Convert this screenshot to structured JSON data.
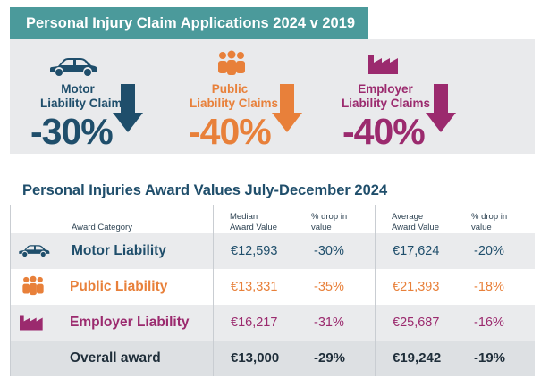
{
  "colors": {
    "teal": "#4b9a9b",
    "navy": "#1f4e6b",
    "orange": "#e8803a",
    "purple": "#9b2a6e",
    "panel_gray": "#e9eaec",
    "dark_text": "#1f2e3a"
  },
  "header": {
    "title": "Personal Injury Claim Applications 2024 v 2019"
  },
  "claims": [
    {
      "icon": "car-icon",
      "label_line1": "Motor",
      "label_line2": "Liability Claims",
      "value": "-30%",
      "trend": "down",
      "color": "#1f4e6b"
    },
    {
      "icon": "people-icon",
      "label_line1": "Public",
      "label_line2": "Liability Claims",
      "value": "-40%",
      "trend": "down",
      "color": "#e8803a"
    },
    {
      "icon": "factory-icon",
      "label_line1": "Employer",
      "label_line2": "Liability Claims",
      "value": "-40%",
      "trend": "down",
      "color": "#9b2a6e"
    }
  ],
  "awards": {
    "title": "Personal Injuries Award Values July-December 2024",
    "columns": {
      "category": "Award Category",
      "median_line1": "Median",
      "median_line2": "Award Value",
      "median_drop_line1": "% drop in",
      "median_drop_line2": "value",
      "average_line1": "Average",
      "average_line2": "Award Value",
      "average_drop_line1": "% drop in",
      "average_drop_line2": "value"
    },
    "rows": [
      {
        "icon": "car-icon",
        "category": "Motor Liability",
        "median": "€12,593",
        "median_drop": "-30%",
        "average": "€17,624",
        "average_drop": "-20%",
        "color": "#1f4e6b"
      },
      {
        "icon": "people-icon",
        "category": "Public Liability",
        "median": "€13,331",
        "median_drop": "-35%",
        "average": "€21,393",
        "average_drop": "-18%",
        "color": "#e8803a"
      },
      {
        "icon": "factory-icon",
        "category": "Employer Liability",
        "median": "€16,217",
        "median_drop": "-31%",
        "average": "€25,687",
        "average_drop": "-16%",
        "color": "#9b2a6e"
      }
    ],
    "total": {
      "category": "Overall award",
      "median": "€13,000",
      "median_drop": "-29%",
      "average": "€19,242",
      "average_drop": "-19%"
    }
  }
}
